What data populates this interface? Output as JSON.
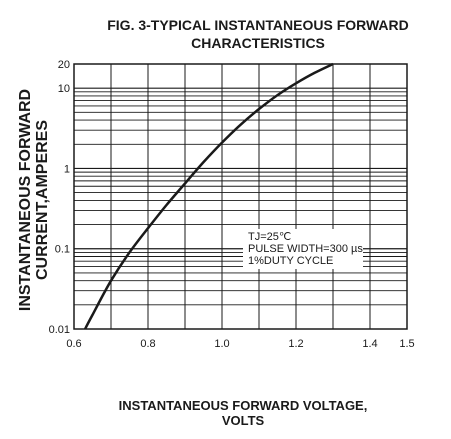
{
  "chart_data": {
    "type": "line",
    "title": "FIG. 3-TYPICAL INSTANTANEOUS FORWARD",
    "title_line2": "CHARACTERISTICS",
    "ylabel": "INSTANTANEOUS FORWARD",
    "ylabel_line2": "CURRENT,AMPERES",
    "xlabel": "INSTANTANEOUS FORWARD VOLTAGE,",
    "xlabel_line2": "VOLTS",
    "x_scale": "linear",
    "y_scale": "log",
    "xlim": [
      0.6,
      1.5
    ],
    "ylim": [
      0.01,
      20
    ],
    "grid": true,
    "x_ticks": [
      {
        "value": 0.6,
        "label": "0.6"
      },
      {
        "value": 0.8,
        "label": "0.8"
      },
      {
        "value": 1.0,
        "label": "1.0"
      },
      {
        "value": 1.2,
        "label": "1.2"
      },
      {
        "value": 1.4,
        "label": "1.4"
      },
      {
        "value": 1.5,
        "label": "1.5"
      }
    ],
    "y_ticks": [
      {
        "value": 0.01,
        "label": "0.01"
      },
      {
        "value": 0.1,
        "label": "0.1"
      },
      {
        "value": 1,
        "label": "1"
      },
      {
        "value": 10,
        "label": "10"
      },
      {
        "value": 20,
        "label": "20"
      }
    ],
    "annotation": [
      "TJ=25℃",
      "PULSE WIDTH=300 µs",
      "1%DUTY CYCLE"
    ],
    "series": [
      {
        "x": [
          0.63,
          0.65,
          0.7,
          0.75,
          0.8,
          0.85,
          0.9,
          0.95,
          1.0,
          1.05,
          1.1,
          1.15,
          1.2,
          1.25,
          1.3
        ],
        "y": [
          0.01,
          0.015,
          0.04,
          0.09,
          0.18,
          0.35,
          0.65,
          1.2,
          2.1,
          3.5,
          5.5,
          8.2,
          11.5,
          15.5,
          20
        ]
      }
    ]
  }
}
